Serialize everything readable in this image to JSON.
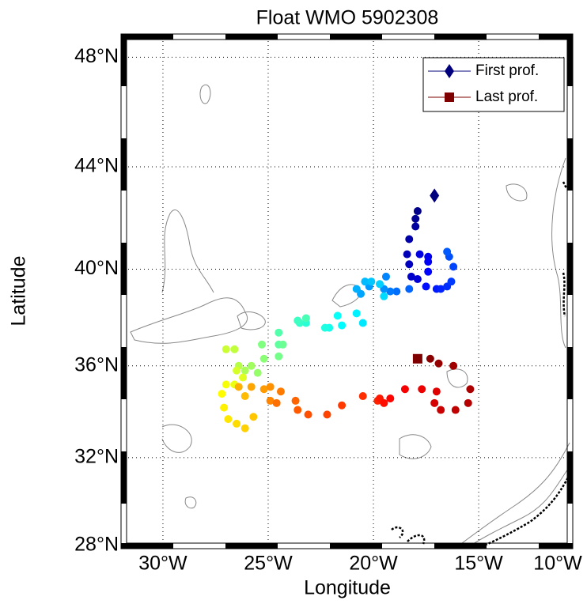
{
  "chart_data": {
    "type": "scatter",
    "projection": "mercator",
    "title": "Float WMO 5902308",
    "x_label": "Longitude",
    "y_label": "Latitude",
    "xlim": [
      -31.84,
      -10.68
    ],
    "ylim": [
      28,
      48.7
    ],
    "xticks": [
      {
        "value": -30,
        "label": "30°W"
      },
      {
        "value": -25,
        "label": "25°W"
      },
      {
        "value": -20,
        "label": "20°W"
      },
      {
        "value": -15,
        "label": "15°W"
      },
      {
        "value": -10,
        "label": "10°W"
      }
    ],
    "yticks": [
      {
        "value": 28,
        "label": "28°N"
      },
      {
        "value": 32,
        "label": "32°N"
      },
      {
        "value": 36,
        "label": "36°N"
      },
      {
        "value": 40,
        "label": "40°N"
      },
      {
        "value": 44,
        "label": "44°N"
      },
      {
        "value": 48,
        "label": "48°N"
      }
    ],
    "grid": true,
    "colormap": "jet",
    "legend_loc": "upper right",
    "legend": [
      {
        "name": "First prof.",
        "color": "#00007f",
        "marker": "diamond"
      },
      {
        "name": "Last prof.",
        "color": "#7f0000",
        "marker": "square"
      }
    ],
    "series": [
      {
        "x": [
          -17.1,
          -17.9,
          -18.0,
          -18.0,
          -18.3,
          -18.4,
          -18.3,
          -18.2,
          -17.9,
          -17.8,
          -17.4,
          -17.4,
          -17.4,
          -17.5,
          -17.0,
          -16.8,
          -16.5,
          -16.3,
          -16.2,
          -16.4,
          -16.5,
          -18.3,
          -18.9,
          -19.2,
          -19.4,
          -19.5,
          -20.2,
          -20.6,
          -20.8,
          -20.4,
          -20.1,
          -19.7,
          -19.5,
          -20.5,
          -20.8,
          -21.5,
          -21.7,
          -22.1,
          -22.3,
          -23.2,
          -23.5,
          -23.6,
          -23.2,
          -24.5,
          -24.5,
          -24.3,
          -24.5,
          -25.3,
          -25.2,
          -25.5,
          -25.8,
          -26.1,
          -26.4,
          -26.6,
          -27.0,
          -26.5,
          -26.2,
          -26.6,
          -27.0,
          -27.2,
          -27.1,
          -26.9,
          -26.5,
          -26.1,
          -25.7,
          -26.1,
          -26.4,
          -25.8,
          -25.2,
          -24.9,
          -24.9,
          -24.4,
          -24.6,
          -23.7,
          -23.6,
          -23.1,
          -22.2,
          -21.5,
          -20.5,
          -19.8,
          -19.7,
          -19.5,
          -19.2,
          -18.5,
          -17.7,
          -17.0,
          -17.1,
          -16.8,
          -16.1,
          -15.5,
          -15.4,
          -16.2,
          -16.9,
          -17.3,
          -17.9
        ],
        "values": [
          42.9,
          42.3,
          42.0,
          41.7,
          41.2,
          40.6,
          40.2,
          39.7,
          39.6,
          40.6,
          40.5,
          40.3,
          39.9,
          39.3,
          39.2,
          39.2,
          39.3,
          39.5,
          40.1,
          40.5,
          40.7,
          39.2,
          39.1,
          39.1,
          39.7,
          39.2,
          39.3,
          39.0,
          39.2,
          39.5,
          39.5,
          39.4,
          38.9,
          37.8,
          38.2,
          37.7,
          38.1,
          37.6,
          37.6,
          37.8,
          37.8,
          37.9,
          38.0,
          37.4,
          36.9,
          36.9,
          36.4,
          36.9,
          36.3,
          35.7,
          36.0,
          35.8,
          36.0,
          36.7,
          36.7,
          35.8,
          35.5,
          35.2,
          35.2,
          34.8,
          34.2,
          33.7,
          33.5,
          33.3,
          33.8,
          34.7,
          35.1,
          35.1,
          35.0,
          35.1,
          34.5,
          34.9,
          34.4,
          34.5,
          34.1,
          33.9,
          33.9,
          34.3,
          34.7,
          34.5,
          34.6,
          34.4,
          34.6,
          35.0,
          35.0,
          34.9,
          34.4,
          34.1,
          34.1,
          34.4,
          35.0,
          36.0,
          36.1,
          36.3,
          36.3
        ]
      }
    ]
  }
}
